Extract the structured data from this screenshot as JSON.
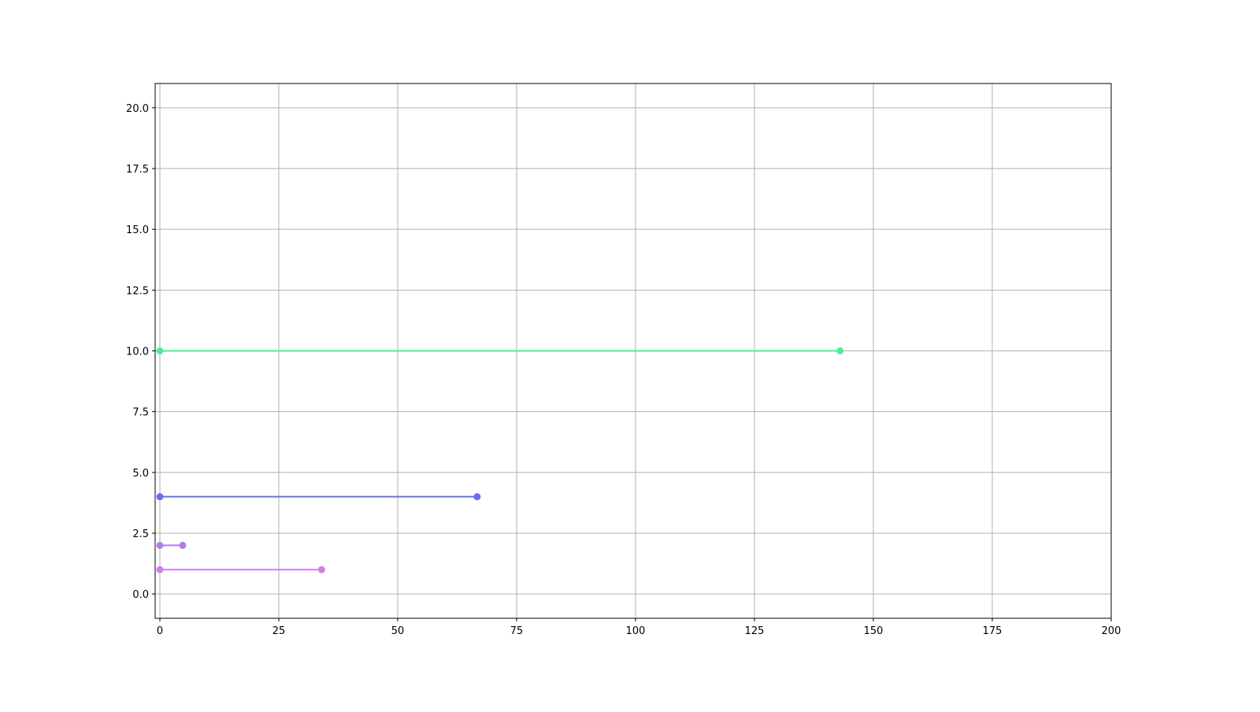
{
  "chart_data": {
    "type": "line",
    "title": "",
    "xlabel": "",
    "ylabel": "",
    "xlim": [
      -1,
      200
    ],
    "ylim": [
      -1,
      21
    ],
    "grid": true,
    "x_ticks": [
      0,
      25,
      50,
      75,
      100,
      125,
      150,
      175,
      200
    ],
    "x_tick_labels": [
      "0",
      "25",
      "50",
      "75",
      "100",
      "125",
      "150",
      "175",
      "200"
    ],
    "y_ticks": [
      0,
      2.5,
      5,
      7.5,
      10,
      12.5,
      15,
      17.5,
      20
    ],
    "y_tick_labels": [
      "0.0",
      "2.5",
      "5.0",
      "7.5",
      "10.0",
      "12.5",
      "15.0",
      "17.5",
      "20.0"
    ],
    "series": [
      {
        "x": [
          0,
          143
        ],
        "y": [
          10,
          10
        ],
        "color": "#4eed94"
      },
      {
        "x": [
          0,
          66.7
        ],
        "y": [
          4,
          4
        ],
        "color": "#6a6ef0"
      },
      {
        "x": [
          0,
          4.8
        ],
        "y": [
          2,
          2
        ],
        "color": "#b57be9"
      },
      {
        "x": [
          0,
          34
        ],
        "y": [
          1,
          1
        ],
        "color": "#d27ee9"
      }
    ]
  }
}
